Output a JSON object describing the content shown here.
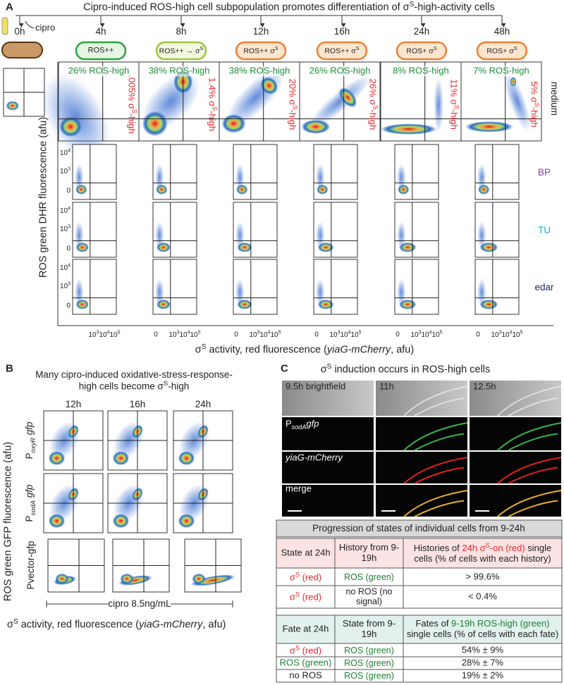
{
  "panel_a": {
    "label": "A",
    "title": [
      "Cipro-induced ROS-high cell subpopulation promotes differentiation of σ",
      "S",
      "-high-activity cells"
    ],
    "cipro": "cipro",
    "timepoints": [
      "0h",
      "4h",
      "8h",
      "12h",
      "16h",
      "24h",
      "48h"
    ],
    "cell_states": [
      [
        "ROS++"
      ],
      [
        "ROS++ → σ",
        "S"
      ],
      [
        "ROS++ σ",
        "S"
      ],
      [
        "ROS++ σ",
        "S"
      ],
      [
        "ROS+ σ",
        "S"
      ],
      [
        "ROS+ σ",
        "S"
      ]
    ],
    "ros_high": [
      "26% ROS-high",
      "38% ROS-high",
      "38% ROS-high",
      "26% ROS-high",
      "8% ROS-high",
      "7% ROS-high"
    ],
    "sigma_high": [
      [
        ".005% σ",
        "S",
        "-high"
      ],
      [
        "1.4% σ",
        "S",
        "-high"
      ],
      [
        "20% σ",
        "S",
        "-high"
      ],
      [
        "26% σ",
        "S",
        "-high"
      ],
      [
        "11% σ",
        "S",
        "-high"
      ],
      [
        "5% σ",
        "S",
        "-high"
      ]
    ],
    "conditions": [
      "medium",
      "BP",
      "TU",
      "edar"
    ],
    "y_axis_label": "ROS green DHR fluorescence (afu)",
    "y_ticks": [
      [
        "10",
        "4"
      ],
      [
        "10",
        "3"
      ],
      [
        "0"
      ]
    ],
    "x_ticks": [
      [
        "0"
      ],
      [
        "10",
        "3"
      ],
      [
        "10",
        "4"
      ],
      [
        "10",
        "5"
      ]
    ],
    "x_axis_label": [
      "σ",
      "S",
      " activity, red fluorescence (",
      "yiaG-mCherry",
      ", afu)"
    ]
  },
  "panel_b": {
    "label": "B",
    "title": [
      "Many cipro-induced oxidative-stress-response-high cells become σ",
      "S",
      "-high"
    ],
    "timepoints": [
      "12h",
      "16h",
      "24h"
    ],
    "reporters": [
      [
        "P",
        "oxyR",
        " gfp"
      ],
      [
        "P",
        "sodA",
        " gfp"
      ],
      [
        "Pvector-gfp"
      ]
    ],
    "y_axis_label": "ROS green GFP fluorescence (afu)",
    "bracket": "cipro 8.5ng/mL",
    "x_axis_label": [
      "σ",
      "S",
      " activity, red fluorescence (",
      "yiaG-mCherry",
      ", afu)"
    ]
  },
  "panel_c": {
    "label": "C",
    "title": [
      "σ",
      "S",
      " induction occurs in ROS-high cells"
    ],
    "image_times": [
      "9.5h brightfield",
      "11h",
      "12.5h"
    ],
    "channels": [
      [
        "P",
        "sodA",
        "gfp"
      ],
      [
        "yiaG-mCherry"
      ],
      [
        "merge"
      ]
    ],
    "table_title": "Progression of states of individual cells from 9-24h",
    "histories": {
      "header": [
        [
          "State at 24h"
        ],
        [
          "History from 9-19h"
        ],
        [
          "Histories of ",
          "24h σ",
          "S",
          "-on (red)",
          " single cells (% of cells with each history)"
        ]
      ],
      "rows": [
        [
          [
            "σ",
            "S",
            " (red)"
          ],
          "ROS (green)",
          "> 99.6%"
        ],
        [
          [
            "σ",
            "S",
            " (red)"
          ],
          "no ROS (no signal)",
          "< 0.4%"
        ]
      ]
    },
    "fates": {
      "header": [
        [
          "Fate at 24h"
        ],
        [
          "State from 9-19h"
        ],
        [
          "Fates of ",
          "9-19h ROS-high (green)",
          " single cells (% of cells with each fate)"
        ]
      ],
      "rows": [
        [
          [
            "σ",
            "S",
            " (red)"
          ],
          "ROS (green)",
          "54% ± 9%"
        ],
        [
          [
            "ROS (green)"
          ],
          "ROS (green)",
          "28% ± 7%"
        ],
        [
          [
            "no ROS"
          ],
          "ROS (green)",
          "19% ± 2%"
        ]
      ]
    }
  }
}
